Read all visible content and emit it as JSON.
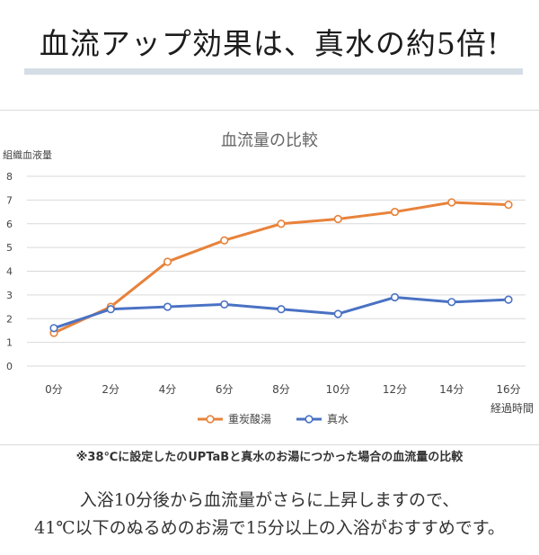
{
  "headline": "血流アップ効果は、真水の約5倍!",
  "caption": "※38℃に設定したのUPTaBと真水のお湯につかった場合の血流量の比較",
  "body_lines": [
    "入浴10分後から血流量がさらに上昇しますので、",
    "41℃以下のぬるめのお湯で15分以上の入浴がおすすめです。"
  ],
  "colors": {
    "divider": "#d5dde6",
    "series_1": "#e8823a",
    "series_2": "#4a72c4",
    "grid": "#d9d9d9"
  },
  "chart_data": {
    "type": "line",
    "title": "血流量の比較",
    "ylabel": "組織血液量",
    "xlabel": "経過時間",
    "categories": [
      "0分",
      "2分",
      "4分",
      "6分",
      "8分",
      "10分",
      "12分",
      "14分",
      "16分"
    ],
    "ylim": [
      0,
      8
    ],
    "yticks": [
      "0",
      "1",
      "2",
      "3",
      "4",
      "5",
      "6",
      "7",
      "8"
    ],
    "grid": true,
    "legend": "bottom",
    "series": [
      {
        "name": "重炭酸湯",
        "color": "#e8823a",
        "values": [
          1.4,
          2.5,
          4.4,
          5.3,
          6.0,
          6.2,
          6.5,
          6.9,
          6.8
        ]
      },
      {
        "name": "真水",
        "color": "#4a72c4",
        "values": [
          1.6,
          2.4,
          2.5,
          2.6,
          2.4,
          2.2,
          2.9,
          2.7,
          2.8
        ]
      }
    ]
  }
}
